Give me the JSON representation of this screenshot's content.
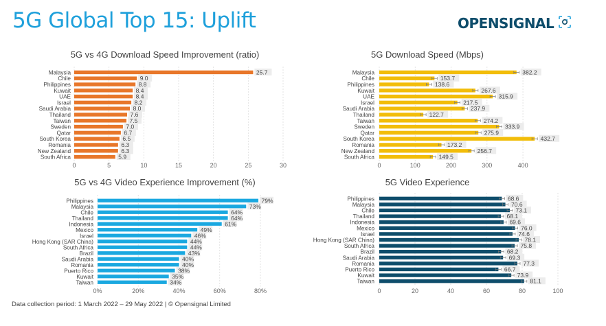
{
  "header": {
    "title": "5G Global Top 15: Uplift",
    "brand": "OPENSIGNAL"
  },
  "footer": {
    "text": "Data collection period: 1 March 2022 – 29 May 2022 |  © Opensignal Limited"
  },
  "colors": {
    "title": "#1ea0db",
    "brand": "#0e4d6b",
    "download_ratio": "#e8772a",
    "download_speed": "#f2bd0a",
    "video_improvement": "#1aa8e0",
    "video_experience": "#0e4d6b",
    "label_bg": "#ececec"
  },
  "chart_data": [
    {
      "type": "bar",
      "orientation": "horizontal",
      "title": "5G vs 4G Download Speed Improvement (ratio)",
      "categories": [
        "Malaysia",
        "Chile",
        "Philippines",
        "Kuwait",
        "UAE",
        "Israel",
        "Saudi Arabia",
        "Thailand",
        "Taiwan",
        "Sweden",
        "Qatar",
        "South Korea",
        "Romania",
        "New Zealand",
        "South Africa"
      ],
      "values": [
        25.7,
        9.0,
        8.8,
        8.4,
        8.4,
        8.2,
        8.0,
        7.6,
        7.5,
        7.0,
        6.7,
        6.5,
        6.3,
        6.3,
        5.9
      ],
      "value_labels": [
        "25.7",
        "9.0",
        "8.8",
        "8.4",
        "8.4",
        "8.2",
        "8.0",
        "7.6",
        "7.5",
        "7.0",
        "6.7",
        "6.5",
        "6.3",
        "6.3",
        "5.9"
      ],
      "xlim": [
        0,
        30
      ],
      "xticks": [
        0,
        5,
        10,
        15,
        20,
        25,
        30
      ],
      "xtick_labels": [
        "0",
        "5",
        "10",
        "15",
        "20",
        "25",
        "30"
      ],
      "grid": true,
      "error_bars": false,
      "color_key": "download_ratio"
    },
    {
      "type": "bar",
      "orientation": "horizontal",
      "title": "5G Download Speed (Mbps)",
      "categories": [
        "Malaysia",
        "Chile",
        "Philippines",
        "Kuwait",
        "UAE",
        "Israel",
        "Saudi Arabia",
        "Thailand",
        "Taiwan",
        "Sweden",
        "Qatar",
        "South Korea",
        "Romania",
        "New Zealand",
        "South Africa"
      ],
      "values": [
        382.2,
        153.7,
        138.6,
        267.6,
        315.9,
        217.5,
        237.9,
        122.7,
        274.2,
        333.9,
        275.9,
        432.7,
        173.2,
        256.7,
        149.5
      ],
      "value_labels": [
        "382.2",
        "153.7",
        "138.6",
        "267.6",
        "315.9",
        "217.5",
        "237.9",
        "122.7",
        "274.2",
        "333.9",
        "275.9",
        "432.7",
        "173.2",
        "256.7",
        "149.5"
      ],
      "xlim": [
        0,
        440
      ],
      "xticks": [
        0,
        100,
        200,
        300,
        400
      ],
      "xtick_labels": [
        "0",
        "100",
        "200",
        "300",
        "400"
      ],
      "grid": true,
      "error_bars": true,
      "color_key": "download_speed"
    },
    {
      "type": "bar",
      "orientation": "horizontal",
      "title": "5G vs 4G Video Experience Improvement (%)",
      "categories": [
        "Philippines",
        "Malaysia",
        "Chile",
        "Thailand",
        "Indonesia",
        "Mexico",
        "Israel",
        "Hong Kong (SAR China)",
        "South Africa",
        "Brazil",
        "Saudi Arabia",
        "Romania",
        "Puerto Rico",
        "Kuwait",
        "Taiwan"
      ],
      "values": [
        79,
        73,
        64,
        64,
        61,
        49,
        46,
        44,
        44,
        43,
        40,
        40,
        38,
        35,
        34
      ],
      "value_labels": [
        "79%",
        "73%",
        "64%",
        "64%",
        "61%",
        "49%",
        "46%",
        "44%",
        "44%",
        "43%",
        "40%",
        "40%",
        "38%",
        "35%",
        "34%"
      ],
      "xlim": [
        0,
        80
      ],
      "xticks": [
        0,
        20,
        40,
        60,
        80
      ],
      "xtick_labels": [
        "0%",
        "20%",
        "40%",
        "60%",
        "80%"
      ],
      "grid": true,
      "error_bars": false,
      "color_key": "video_improvement"
    },
    {
      "type": "bar",
      "orientation": "horizontal",
      "title": "5G Video Experience",
      "categories": [
        "Philippines",
        "Malaysia",
        "Chile",
        "Thailand",
        "Indonesia",
        "Mexico",
        "Israel",
        "Hong Kong (SAR China)",
        "South Africa",
        "Brazil",
        "Saudi Arabia",
        "Romania",
        "Puerto Rico",
        "Kuwait",
        "Taiwan"
      ],
      "values": [
        68.6,
        70.6,
        73.1,
        68.1,
        69.6,
        76.0,
        74.6,
        78.1,
        75.8,
        68.2,
        69.3,
        77.3,
        66.7,
        73.9,
        81.1
      ],
      "value_labels": [
        "68.6",
        "70.6",
        "73.1",
        "68.1",
        "69.6",
        "76.0",
        "74.6",
        "78.1",
        "75.8",
        "68.2",
        "69.3",
        "77.3",
        "66.7",
        "73.9",
        "81.1"
      ],
      "xlim": [
        0,
        100
      ],
      "xticks": [
        0,
        20,
        40,
        60,
        80,
        100
      ],
      "xtick_labels": [
        "0",
        "20",
        "40",
        "60",
        "80",
        "100"
      ],
      "grid": true,
      "error_bars": true,
      "color_key": "video_experience"
    }
  ]
}
